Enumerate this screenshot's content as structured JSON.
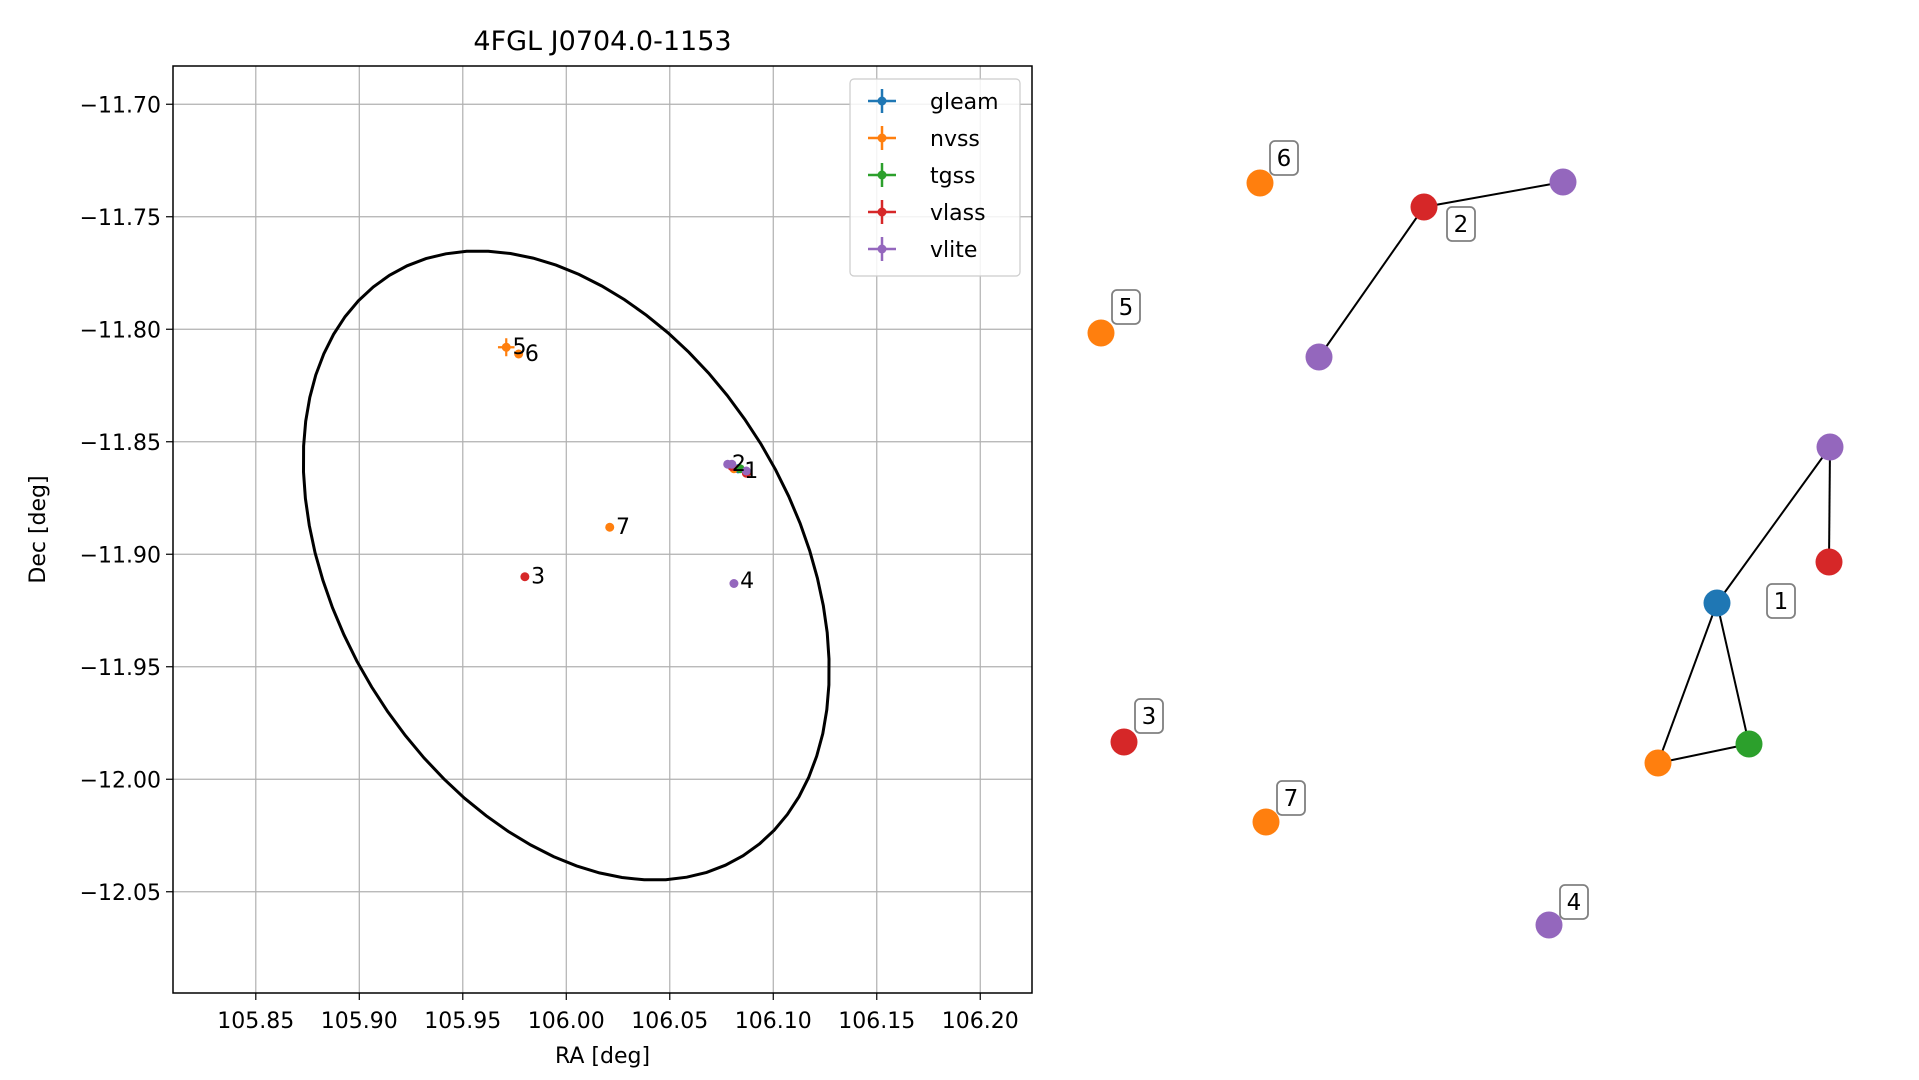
{
  "chart_data": [
    {
      "type": "scatter",
      "title": "4FGL J0704.0-1153",
      "xlabel": "RA [deg]",
      "ylabel": "Dec [deg]",
      "xlim": [
        105.81,
        106.225
      ],
      "ylim": [
        -12.095,
        -11.683
      ],
      "xticks": [
        105.85,
        105.9,
        105.95,
        106.0,
        106.05,
        106.1,
        106.15,
        106.2
      ],
      "xtick_labels": [
        "105.85",
        "105.90",
        "105.95",
        "106.00",
        "106.05",
        "106.10",
        "106.15",
        "106.20"
      ],
      "yticks": [
        -11.7,
        -11.75,
        -11.8,
        -11.85,
        -11.9,
        -11.95,
        -12.0,
        -12.05
      ],
      "ytick_labels": [
        "−11.70",
        "−11.75",
        "−11.80",
        "−11.85",
        "−11.90",
        "−11.95",
        "−12.00",
        "−12.05"
      ],
      "grid": true,
      "legend_position": "top-right",
      "ellipse": {
        "center_ra": 106.0,
        "center_dec": -11.905,
        "semi_major": 0.155,
        "semi_minor": 0.108,
        "angle_deg": -53
      },
      "series": [
        {
          "name": "gleam",
          "color": "#1f77b4",
          "points": [
            {
              "ra": 106.083,
              "dec": -11.862,
              "xerr": 0.003,
              "yerr": 0.002
            }
          ]
        },
        {
          "name": "nvss",
          "color": "#ff7f0e",
          "points": [
            {
              "ra": 105.971,
              "dec": -11.808,
              "xerr": 0.004,
              "yerr": 0.004
            },
            {
              "ra": 105.977,
              "dec": -11.811,
              "xerr": 0.0,
              "yerr": 0.0
            },
            {
              "ra": 106.021,
              "dec": -11.888,
              "xerr": 0.0,
              "yerr": 0.0
            },
            {
              "ra": 106.081,
              "dec": -11.862,
              "xerr": 0.0,
              "yerr": 0.0
            }
          ]
        },
        {
          "name": "tgss",
          "color": "#2ca02c",
          "points": [
            {
              "ra": 106.084,
              "dec": -11.862,
              "xerr": 0.003,
              "yerr": 0.0
            }
          ]
        },
        {
          "name": "vlass",
          "color": "#d62728",
          "points": [
            {
              "ra": 105.98,
              "dec": -11.91,
              "xerr": 0.0,
              "yerr": 0.0
            },
            {
              "ra": 106.087,
              "dec": -11.864,
              "xerr": 0.0,
              "yerr": 0.0
            },
            {
              "ra": 106.08,
              "dec": -11.861,
              "xerr": 0.0,
              "yerr": 0.0
            }
          ]
        },
        {
          "name": "vlite",
          "color": "#9467bd",
          "points": [
            {
              "ra": 106.078,
              "dec": -11.86,
              "xerr": 0.0,
              "yerr": 0.0
            },
            {
              "ra": 106.087,
              "dec": -11.863,
              "xerr": 0.0,
              "yerr": 0.0
            },
            {
              "ra": 106.081,
              "dec": -11.913,
              "xerr": 0.0,
              "yerr": 0.0
            },
            {
              "ra": 106.08,
              "dec": -11.86,
              "xerr": 0.0,
              "yerr": 0.0
            }
          ]
        }
      ],
      "point_labels": [
        {
          "text": "1",
          "ra": 106.086,
          "dec": -11.866
        },
        {
          "text": "2",
          "ra": 106.08,
          "dec": -11.863
        },
        {
          "text": "3",
          "ra": 105.983,
          "dec": -11.913
        },
        {
          "text": "4",
          "ra": 106.084,
          "dec": -11.915
        },
        {
          "text": "5",
          "ra": 105.974,
          "dec": -11.811
        },
        {
          "text": "6",
          "ra": 105.98,
          "dec": -11.814
        },
        {
          "text": "7",
          "ra": 106.024,
          "dec": -11.891
        }
      ]
    },
    {
      "type": "network",
      "node_colors": {
        "gleam": "#1f77b4",
        "nvss": "#ff7f0e",
        "tgss": "#2ca02c",
        "vlass": "#d62728",
        "vlite": "#9467bd"
      },
      "nodes": [
        {
          "id": "n1",
          "catalog": "gleam"
        },
        {
          "id": "n2",
          "catalog": "tgss"
        },
        {
          "id": "n3",
          "catalog": "nvss"
        },
        {
          "id": "n4",
          "catalog": "vlite"
        },
        {
          "id": "n5",
          "catalog": "vlass"
        },
        {
          "id": "n6",
          "catalog": "vlass"
        },
        {
          "id": "n7",
          "catalog": "vlite"
        },
        {
          "id": "n8",
          "catalog": "vlite"
        },
        {
          "id": "n9",
          "catalog": "vlass"
        },
        {
          "id": "n10",
          "catalog": "vlite"
        },
        {
          "id": "n11",
          "catalog": "nvss"
        },
        {
          "id": "n12",
          "catalog": "nvss"
        },
        {
          "id": "n13",
          "catalog": "nvss"
        }
      ],
      "edges": [
        [
          "n1",
          "n2"
        ],
        [
          "n1",
          "n3"
        ],
        [
          "n2",
          "n3"
        ],
        [
          "n1",
          "n4"
        ],
        [
          "n4",
          "n5"
        ],
        [
          "n6",
          "n7"
        ],
        [
          "n6",
          "n8"
        ]
      ],
      "group_labels": [
        {
          "text": "1",
          "group": 1
        },
        {
          "text": "2",
          "group": 2
        },
        {
          "text": "3",
          "group": 3
        },
        {
          "text": "4",
          "group": 4
        },
        {
          "text": "5",
          "group": 5
        },
        {
          "text": "6",
          "group": 6
        },
        {
          "text": "7",
          "group": 7
        }
      ]
    }
  ]
}
